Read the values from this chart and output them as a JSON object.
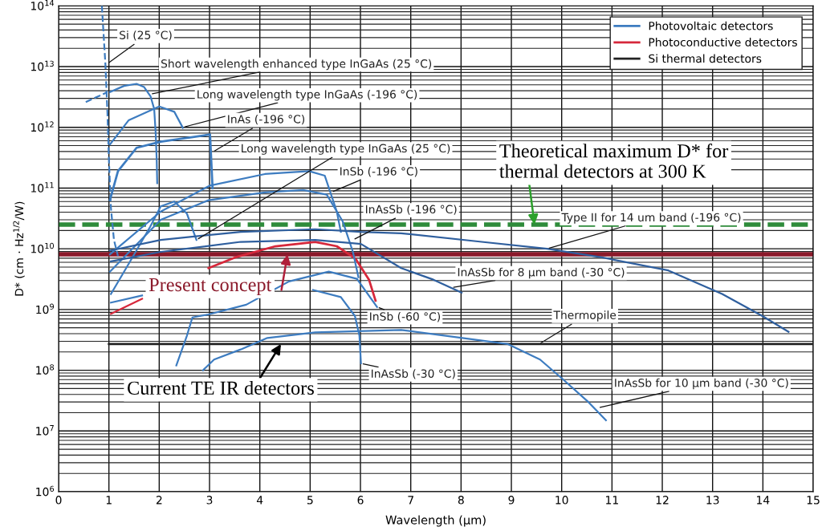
{
  "chart_data": {
    "type": "line",
    "xlabel": "Wavelength (µm)",
    "ylabel": "D* (cm · Hz$^{1/2}$/W)",
    "xlim": [
      0,
      15
    ],
    "xticks": [
      0,
      1,
      2,
      3,
      4,
      5,
      6,
      7,
      8,
      9,
      10,
      11,
      12,
      13,
      14,
      15
    ],
    "ylim": [
      1000000.0,
      100000000000000.0
    ],
    "log": "y",
    "yticks": [
      {
        "value": 1000000.0,
        "label": "10$^{6}$"
      },
      {
        "value": 10000000.0,
        "label": "10$^{7}$"
      },
      {
        "value": 100000000.0,
        "label": "10$^{8}$"
      },
      {
        "value": 1000000000.0,
        "label": "10$^{9}$"
      },
      {
        "value": 10000000000.0,
        "label": "10$^{10}$"
      },
      {
        "value": 100000000000.0,
        "label": "10$^{11}$"
      },
      {
        "value": 1000000000000.0,
        "label": "10$^{12}$"
      },
      {
        "value": 10000000000000.0,
        "label": "10$^{13}$"
      },
      {
        "value": 100000000000000.0,
        "label": "10$^{14}$"
      }
    ],
    "grid": true,
    "legend": "top right",
    "marker": "none",
    "series": [
      {
        "name": "Photovoltaic detectors",
        "color": "#3d7cc0",
        "x": [
          1.02,
          1.18,
          1.55,
          2.03,
          3.01,
          3.06
        ],
        "values": [
          63000000000.0,
          190000000000.0,
          460000000000.0,
          580000000000.0,
          760000000000.0,
          100000000000.0
        ]
      },
      {
        "name": "Photoconductive detectors",
        "color": "#d6283b",
        "x": [
          2.98,
          3.51,
          4.31,
          5.1,
          5.53,
          5.9,
          6.17,
          6.3
        ],
        "values": [
          4800000000.0,
          7200000000.0,
          11000000000.0,
          13000000000.0,
          11000000000.0,
          6900000000.0,
          3100000000.0,
          1400000000.0
        ]
      },
      {
        "name": "Si thermal detectors",
        "color": "#222222",
        "x": [
          1.0,
          15.0
        ],
        "values": [
          270000000.0,
          270000000.0
        ]
      },
      {
        "color": "#3d7cc0",
        "line_style": "dashed",
        "x": [
          0.54,
          0.97
        ],
        "values": [
          2600000000000.0,
          3800000000000.0
        ]
      },
      {
        "color": "#3d7cc0",
        "line_style": "dashed",
        "x": [
          0.86,
          0.93,
          0.97,
          1.0,
          1.04,
          1.1,
          1.18
        ],
        "values": [
          100000000000000.0,
          11000000000000.0,
          1800000000000.0,
          290000000000.0,
          47000000000.0,
          14000000000.0,
          7600000000.0
        ]
      },
      {
        "color": "#3d7cc0",
        "x": [
          1.02,
          1.3,
          1.55,
          1.7,
          1.83,
          1.9,
          1.93,
          1.95,
          1.96
        ],
        "values": [
          3800000000000.0,
          4800000000000.0,
          5200000000000.0,
          4600000000000.0,
          3200000000000.0,
          2000000000000.0,
          790000000000.0,
          290000000000.0,
          120000000000.0
        ]
      },
      {
        "color": "#3d7cc0",
        "x": [
          1.02,
          1.39,
          2.0,
          2.3,
          2.47
        ],
        "values": [
          520000000000.0,
          1300000000000.0,
          2200000000000.0,
          1800000000000.0,
          980000000000.0
        ]
      },
      {
        "color": "#3d7cc0",
        "x": [
          1.04,
          1.39,
          1.82,
          2.03,
          2.3,
          2.55,
          2.74
        ],
        "values": [
          1800000000.0,
          5600000000.0,
          23000000000.0,
          50000000000.0,
          60000000000.0,
          38000000000.0,
          14000000000.0
        ]
      },
      {
        "color": "#3d7cc0",
        "x": [
          1.02,
          2.03,
          3.01,
          4.1,
          4.98,
          5.29,
          5.53,
          5.61
        ],
        "values": [
          8100000000.0,
          41000000000.0,
          110000000000.0,
          170000000000.0,
          190000000000.0,
          160000000000.0,
          41000000000.0,
          19000000000.0
        ]
      },
      {
        "color": "#3d7cc0",
        "x": [
          1.02,
          2.03,
          2.98,
          4.1,
          4.86,
          5.33,
          5.65,
          5.85,
          5.96
        ],
        "values": [
          4200000000.0,
          30000000000.0,
          63000000000.0,
          85000000000.0,
          93000000000.0,
          78000000000.0,
          28000000000.0,
          8900000000.0,
          3400000000.0
        ]
      },
      {
        "color": "#2f5f9e",
        "x": [
          1.02,
          2.03,
          3.62,
          5.1,
          6.01,
          6.81,
          8.41,
          9.71,
          10.8,
          12.12,
          13.19,
          13.99,
          14.51
        ],
        "values": [
          9300000000.0,
          14000000000.0,
          19000000000.0,
          21000000000.0,
          19000000000.0,
          18000000000.0,
          13000000000.0,
          10000000000.0,
          7200000000.0,
          4400000000.0,
          1800000000.0,
          780000000.0,
          430000000.0
        ]
      },
      {
        "color": "#2f5f9e",
        "x": [
          1.04,
          2.03,
          3.62,
          5.1,
          6.01,
          6.81,
          7.45,
          8.01
        ],
        "values": [
          6200000000.0,
          8900000000.0,
          13000000000.0,
          14000000000.0,
          12000000000.0,
          4800000000.0,
          3100000000.0,
          1900000000.0
        ]
      },
      {
        "color": "#3d7cc0",
        "x": [
          1.04,
          1.66,
          2.82,
          4.1,
          5.06,
          5.61,
          5.89,
          5.98,
          6.01
        ],
        "values": [
          1300000000.0,
          1700000000.0,
          null,
          null,
          2100000000.0,
          1600000000.0,
          780000000.0,
          370000000.0,
          130000000.0
        ]
      },
      {
        "color": "#3d7cc0",
        "x": [
          2.34,
          2.55,
          2.66,
          2.98,
          3.73,
          4.58,
          5.37,
          5.93,
          6.33
        ],
        "values": [
          120000000.0,
          370000000.0,
          740000000.0,
          830000000.0,
          1200000000.0,
          2900000000.0,
          4200000000.0,
          3200000000.0,
          1100000000.0
        ]
      },
      {
        "color": "#3d7cc0",
        "x": [
          2.87,
          3.09,
          3.62,
          4.15,
          5.1,
          6.81,
          8.93,
          9.57,
          10.0,
          10.53,
          10.88
        ],
        "values": [
          100000000.0,
          150000000.0,
          220000000.0,
          340000000.0,
          420000000.0,
          460000000.0,
          270000000.0,
          150000000.0,
          74000000.0,
          30000000.0,
          15000000.0
        ]
      },
      {
        "color": "#d6283b",
        "x": [
          1.04,
          1.66
        ],
        "values": [
          850000000.0,
          1500000000.0
        ]
      }
    ],
    "ref_lines": [
      {
        "axis": "y",
        "value": 25000000000.0,
        "color": "#2e8b3a",
        "line_style": "dashed"
      },
      {
        "axis": "y",
        "value": 8100000000.0,
        "color": "#8b1a2b",
        "line_style": "solid"
      }
    ],
    "annotations": [
      {
        "text": "Si (25 °C)",
        "x": 0.96,
        "y": 11000000000000.0
      },
      {
        "text": "Short wavelength enhanced type InGaAs (25 °C)",
        "x": 1.82,
        "y": 3500000000000.0
      },
      {
        "text": "Long wavelength type InGaAs (-196 °C)",
        "x": 2.47,
        "y": 1000000000000.0
      },
      {
        "text": "InAs (-196 °C)",
        "x": 3.06,
        "y": 390000000000.0
      },
      {
        "text": "Long wavelength type InGaAs (25 °C)",
        "x": 2.74,
        "y": 14000000000.0
      },
      {
        "text": "InSb (-196 °C)",
        "x": 5.42,
        "y": 85000000000.0
      },
      {
        "text": "InAsSb (-196 °C)",
        "x": 5.85,
        "y": 14000000000.0
      },
      {
        "text": "Type II for 14 um band (-196 °C)",
        "x": 9.71,
        "y": 10000000000.0
      },
      {
        "text": "InAsSb for 8 µm band (-30 °C)",
        "x": 7.81,
        "y": 2300000000.0
      },
      {
        "text": "InSb (-60 °C)",
        "x": 6.33,
        "y": 1100000000.0
      },
      {
        "text": "Thermopile",
        "x": 9.55,
        "y": 270000000.0
      },
      {
        "text": "InAsSb (-30 °C)",
        "x": 6.01,
        "y": 130000000.0
      },
      {
        "text": "InAsSb for 10 µm band (-30 °C)",
        "x": 10.72,
        "y": 24000000.0
      },
      {
        "text": "Theoretical maximum D* for\nthermal detectors at 300 K",
        "x": 9.46,
        "y": 25000000000.0
      },
      {
        "text": "Present concept",
        "x": 4.55,
        "y": 8100000000.0
      },
      {
        "text": "Current TE IR detectors",
        "x": 4.42,
        "y": 270000000.0
      }
    ]
  }
}
